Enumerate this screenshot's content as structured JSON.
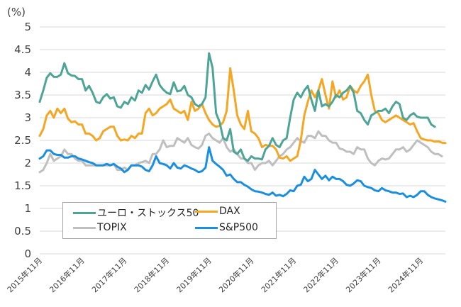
{
  "chart_data": {
    "type": "line",
    "title": "",
    "unit_label": "(%)",
    "xlabel": "",
    "ylabel": "(%)",
    "ylim": [
      0,
      5
    ],
    "yticks": [
      "0",
      "0.5",
      "1",
      "1.5",
      "2",
      "2.5",
      "3",
      "3.5",
      "4",
      "4.5",
      "5"
    ],
    "xtick_labels": [
      "2015年11月",
      "2016年11月",
      "2017年11月",
      "2018年11月",
      "2019年11月",
      "2020年11月",
      "2021年11月",
      "2022年11月",
      "2023年11月",
      "2024年11月"
    ],
    "x_start": "2015-11",
    "frequency": "monthly",
    "grid": true,
    "legend_position": "bottom-left",
    "series": [
      {
        "name": "ユーロ・ストックス50",
        "color": "#4ea597",
        "values": [
          3.35,
          3.6,
          3.88,
          3.98,
          3.9,
          3.9,
          3.95,
          4.2,
          3.98,
          3.93,
          3.92,
          3.85,
          3.85,
          3.6,
          3.7,
          3.55,
          3.35,
          3.32,
          3.45,
          3.52,
          3.42,
          3.45,
          3.25,
          3.22,
          3.35,
          3.3,
          3.45,
          3.38,
          3.6,
          3.55,
          3.72,
          3.62,
          3.8,
          3.95,
          3.72,
          3.62,
          3.55,
          3.52,
          3.78,
          3.58,
          3.6,
          3.7,
          3.5,
          3.45,
          3.3,
          3.25,
          3.3,
          3.45,
          4.42,
          4.1,
          3.1,
          2.9,
          2.55,
          2.5,
          2.75,
          2.25,
          2.2,
          2.3,
          2.1,
          2.05,
          2.15,
          2.1,
          2.1,
          2.08,
          2.3,
          2.38,
          2.55,
          2.4,
          2.35,
          2.5,
          2.55,
          3.0,
          3.4,
          3.55,
          3.45,
          3.6,
          3.7,
          3.4,
          3.15,
          3.6,
          3.25,
          3.3,
          3.25,
          3.35,
          3.5,
          3.45,
          3.55,
          3.6,
          3.7,
          3.55,
          3.15,
          3.1,
          2.95,
          2.85,
          3.05,
          3.1,
          3.15,
          3.15,
          3.2,
          3.1,
          3.25,
          3.35,
          3.3,
          3.0,
          2.95,
          3.05,
          3.1,
          3.02,
          3.0,
          3.0,
          3.0,
          2.85,
          2.8
        ]
      },
      {
        "name": "DAX",
        "color": "#f5a623",
        "values": [
          2.6,
          2.75,
          3.05,
          3.15,
          3.0,
          3.2,
          3.1,
          3.2,
          2.98,
          2.9,
          2.92,
          2.85,
          2.85,
          2.65,
          2.65,
          2.6,
          2.5,
          2.55,
          2.7,
          2.75,
          2.8,
          2.8,
          2.6,
          2.5,
          2.52,
          2.5,
          2.6,
          2.55,
          2.65,
          2.65,
          3.1,
          3.2,
          3.05,
          3.1,
          3.2,
          3.25,
          3.3,
          3.4,
          3.2,
          3.15,
          3.1,
          3.15,
          2.95,
          3.35,
          3.15,
          3.2,
          3.3,
          3.1,
          2.95,
          2.85,
          2.8,
          2.82,
          2.9,
          3.15,
          4.09,
          3.6,
          3.05,
          2.85,
          2.75,
          3.15,
          2.7,
          2.65,
          2.55,
          2.35,
          2.4,
          2.38,
          2.38,
          2.3,
          2.12,
          2.1,
          2.15,
          2.05,
          2.1,
          2.15,
          2.5,
          3.05,
          3.35,
          3.6,
          3.45,
          3.6,
          3.85,
          3.5,
          3.2,
          3.8,
          3.45,
          3.6,
          3.4,
          3.45,
          3.7,
          3.6,
          3.55,
          3.7,
          3.8,
          3.95,
          3.5,
          3.15,
          3.1,
          2.95,
          2.9,
          2.95,
          3.0,
          3.05,
          3.0,
          2.95,
          2.9,
          2.85,
          2.88,
          2.7,
          2.55,
          2.52,
          2.5,
          2.5,
          2.47,
          2.48,
          2.45,
          2.44
        ]
      },
      {
        "name": "TOPIX",
        "color": "#bfbfbf",
        "values": [
          1.8,
          1.85,
          2.0,
          2.2,
          2.05,
          2.1,
          2.15,
          2.3,
          2.2,
          2.2,
          2.1,
          2.05,
          2.05,
          1.95,
          1.95,
          1.95,
          1.95,
          1.95,
          1.95,
          1.95,
          1.95,
          1.98,
          1.85,
          1.85,
          1.9,
          1.85,
          1.95,
          1.95,
          2.0,
          2.02,
          2.05,
          2.0,
          2.2,
          2.2,
          2.3,
          2.5,
          2.35,
          2.38,
          2.38,
          2.55,
          2.5,
          2.45,
          2.55,
          2.4,
          2.35,
          2.32,
          2.4,
          2.6,
          2.65,
          2.55,
          2.5,
          2.45,
          2.55,
          2.35,
          2.25,
          2.3,
          2.2,
          2.1,
          2.1,
          2.0,
          2.0,
          1.85,
          1.95,
          2.0,
          2.0,
          2.05,
          1.95,
          2.05,
          2.15,
          2.2,
          2.3,
          2.35,
          2.45,
          2.55,
          2.48,
          2.45,
          2.6,
          2.6,
          2.55,
          2.7,
          2.6,
          2.6,
          2.5,
          2.45,
          2.45,
          2.32,
          2.3,
          2.25,
          2.25,
          2.2,
          2.35,
          2.3,
          2.3,
          2.1,
          2.0,
          1.95,
          2.05,
          2.1,
          2.08,
          2.1,
          2.2,
          2.3,
          2.3,
          2.35,
          2.25,
          2.3,
          2.4,
          2.5,
          2.45,
          2.4,
          2.35,
          2.25,
          2.2,
          2.2,
          2.15
        ]
      },
      {
        "name": "S&P500",
        "color": "#1a8fe0",
        "values": [
          2.1,
          2.15,
          2.28,
          2.28,
          2.2,
          2.18,
          2.18,
          2.12,
          2.12,
          2.15,
          2.15,
          2.1,
          2.08,
          2.05,
          2.02,
          2.0,
          1.95,
          1.95,
          1.95,
          1.98,
          1.95,
          1.98,
          1.92,
          1.88,
          1.8,
          1.85,
          1.95,
          1.95,
          1.95,
          1.92,
          1.85,
          1.82,
          1.95,
          2.15,
          2.0,
          1.98,
          1.95,
          1.88,
          2.0,
          1.9,
          1.88,
          1.95,
          1.92,
          1.88,
          1.85,
          1.8,
          1.82,
          1.9,
          2.35,
          2.05,
          1.98,
          1.92,
          1.85,
          1.72,
          1.75,
          1.65,
          1.58,
          1.58,
          1.52,
          1.48,
          1.42,
          1.38,
          1.37,
          1.35,
          1.32,
          1.3,
          1.35,
          1.28,
          1.3,
          1.27,
          1.32,
          1.4,
          1.38,
          1.5,
          1.52,
          1.7,
          1.6,
          1.65,
          1.85,
          1.75,
          1.65,
          1.72,
          1.62,
          1.7,
          1.65,
          1.65,
          1.6,
          1.52,
          1.5,
          1.55,
          1.62,
          1.6,
          1.5,
          1.47,
          1.45,
          1.4,
          1.38,
          1.45,
          1.4,
          1.38,
          1.35,
          1.35,
          1.32,
          1.33,
          1.25,
          1.28,
          1.25,
          1.3,
          1.38,
          1.38,
          1.3,
          1.25,
          1.22,
          1.2,
          1.18,
          1.15
        ]
      }
    ]
  }
}
